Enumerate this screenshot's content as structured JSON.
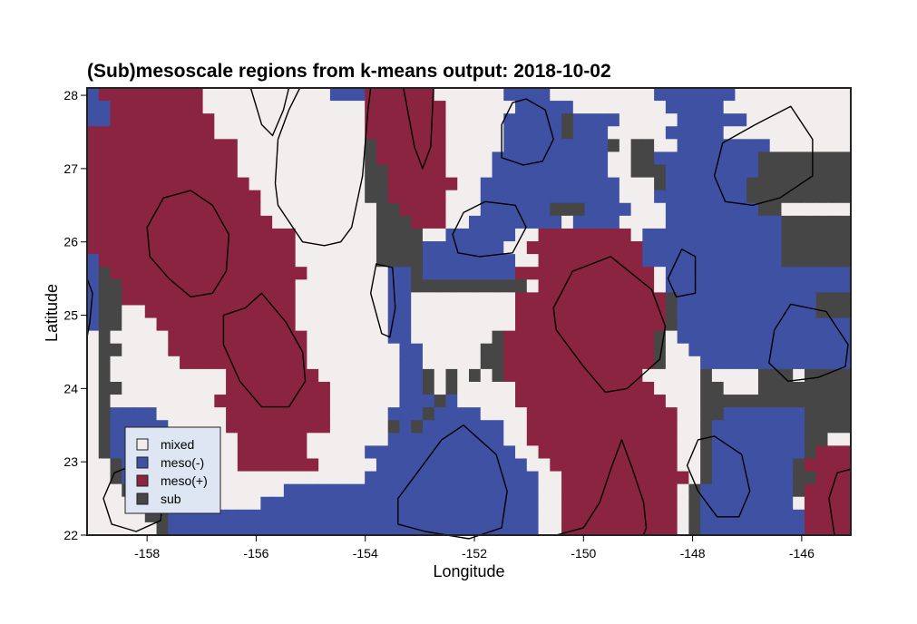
{
  "chart_data": {
    "type": "heatmap",
    "title": "(Sub)mesoscale regions from k-means output: 2018-10-02",
    "xlabel": "Longitude",
    "ylabel": "Latitude",
    "xlim": [
      -159.1,
      -145.1
    ],
    "ylim": [
      22.0,
      28.1
    ],
    "xticks": [
      -158,
      -156,
      -154,
      -152,
      -150,
      -148,
      -146
    ],
    "xtick_labels": [
      "-158",
      "-156",
      "-154",
      "-152",
      "-150",
      "-148",
      "-146"
    ],
    "yticks": [
      22,
      23,
      24,
      25,
      26,
      27,
      28
    ],
    "ytick_labels": [
      "22",
      "23",
      "24",
      "25",
      "26",
      "27",
      "28"
    ],
    "grid": false,
    "legend_position": "lower-left",
    "legend": [
      {
        "key": "mixed",
        "label": "mixed",
        "color": "#f2eeee"
      },
      {
        "key": "meso_neg",
        "label": "meso(-)",
        "color": "#3f51a3"
      },
      {
        "key": "meso_pos",
        "label": "meso(+)",
        "color": "#8b2440"
      },
      {
        "key": "sub",
        "label": "sub",
        "color": "#464646"
      }
    ],
    "grid_resolution_deg": 0.25,
    "cell_codes": {
      "m": "mixed",
      "n": "meso(-)",
      "p": "meso(+)",
      "s": "sub"
    },
    "rows_top_to_bottom": [
      "npppppppppmmmmmmmmmmmnnnppppppmmmmmmnnnnmmmmmmmmmnnnnnnnmmm",
      "nnppppppppmmmmmmmmmmmmmmpppppppmmmmmmnnnnnmmmmmmmmnnnnnmmmm",
      "nnpppppppppmmmmmmmmmmmmmpppppppmmmmmnnnnnsnnnnmmmmmnnnnnnmmm",
      "pppppppppppmmmmmmmmmmmmmpppppppmmmmmnnnnnsnnnmmmmmnnnnnmmmmm",
      "pppppppppppppmmmmmmmmmmmsppppppmmmmmnnnnnnnnnsmssmmnnnnnnnnmm",
      "pppppppppppppmmmmmmmmmmmsppppppmmmmnnnnnnnnnnmmssnnnnnnnnnsss",
      "pppppppppppppmmmmmmmmmmmsspppppmmmmnnnnnnnnnnmmsssnnnnnnnnssss",
      "ppppppppppppppmmmmmmmmmmssppppppmmnnnnnnnnnnnnmmmsnnnnnnnsssss",
      "pppppppppppppppmmmmmmmmmsspppppmmmnnnnnnnnnnnnmmmnnnnnnnnsssss",
      "pppppppppppppppmmmmmmmmmmssppppmmmnnnnnnsssnnnnmmmnnnnnnnnssmm",
      "ppppppppppppppppmmmmmmmmmssspppmmnnnnnnnnmnnnnmmmmnnnnnnnnnnss",
      "ppppppppppppppppppmmmmmmmssssmmnnnnnnmmppppppppmnnnnnnnnnnnnss",
      "ppppppppppppppppppmmmmmmmssssnnnnnnnmmppppppppppnnnnnnnnnnnnss",
      "npppppppppppppppppmmmmmmmssssnnnnnnnnmmpppppppppnnnnnnnnnnnnss",
      "nspppppppppppppppppmmmmmmmnnsnnnnnnnnppppppppppppmnnnnnnnnnnnnn",
      "nsspppppppppppppppmmmmmmmmnnssssssssssmppppppppppmnnnnnnnnnnnnn",
      "nsspppppppppppppppmmmmmmmmnnmmmmmmmmmpppppppppppppsnnnnnnnnnnnns",
      "nssmmpppppppppppppmmmmmmmmnnmmmmmmmmmpppppppppppppsnnnnnnnnnnnns",
      "nssmmmppppppppppppmmmmmmmmnnmmmmmmmmmpppppppppppppsnnnnnnnnnnnnn",
      "msmmmmmppppppppppppmmmmmmmnnmmmmmmmspppppppppppppsmnnnnnnnnnnnnn",
      "mssmmmmppppppppppppmmmmmmmmnnmmmmmsspppppppppppppsmmnnnnnnnnnnnn",
      "msmmmmmmpppppppppppmmmmmmmmnnmmmmmsspppppppppppppsmmmnnnnnnnnnnn",
      "msmmmmmmmmmmppppppppmmmmmmmnnsmsmsmsppppppppppppmmmmmsmmmmsssmss",
      "mssmmmmmmmmmpppppppppmmmmmmnnsmsmmmmmppppppppppppmmmmssmmmssssss",
      "msmmmmmmmmmppppppppppmmmmmmnnnsnmmmmmpppppppppppppmmmsssssssssss",
      "msnnnnmmmmmmpppppppppmmmmmnnnsnnnnmmmmpppppppppppppmmssnnnnnnnsss",
      "msnnnnnmmmmmpppppppppmmmmmsnsnnnnnnnmmpppppppppppppmmsnnnnnnnnsss",
      "msnnnnnnmmmmmppppppmmmmmmmnnnnnnnnnnmmpppppppppppppmmsnnnnnnnnssm",
      "msnnnnnnmmmmmppppppmmmmmnnnnnnnnnnnnnmmppppppppppppmmsnnnnnnnnspp",
      "mmsnnnnnmmmmmpppppppmmmmmnnnnnnnnnnnnnmmpppppppppppmmsnnnnnnnsppp",
      "mmsnnnnmmmmmmmmmmmmmmmmmnnnnnnnnnnnnnnnmmpppppppppppmsnnnnnnnssppp",
      "mmmsnnnmmmmmmmmmmnnnnnnnnnnnnnnnnnnnnnnmmppppppppppmsnnnnnnnnsppp",
      "mmmmssnnnmmmmmmnnnnnnnnnnnnnnnnnnnnnnnnmmppppppppppmsnnnnnnnnmppp",
      "mmmmmssnnnnnnnnnnnnnnnnnnnnnnnnnnnnnnnnmmppppppppppmsnnnnnnnnnppp",
      "mmmmmmsnnnnnnnnnnnnnnnnnnnnnnnnnnnnnnnnmmppppppppppmsnnnnnnnnnppp"
    ],
    "contours": [
      {
        "name": "contour-1",
        "closed": true,
        "points": [
          [
            -157.7,
            26.6
          ],
          [
            -157.2,
            26.7
          ],
          [
            -156.8,
            26.5
          ],
          [
            -156.5,
            26.1
          ],
          [
            -156.55,
            25.6
          ],
          [
            -156.8,
            25.3
          ],
          [
            -157.2,
            25.25
          ],
          [
            -157.6,
            25.5
          ],
          [
            -157.95,
            25.8
          ],
          [
            -158.0,
            26.2
          ]
        ]
      },
      {
        "name": "contour-2",
        "closed": true,
        "points": [
          [
            -155.9,
            25.3
          ],
          [
            -155.45,
            24.9
          ],
          [
            -155.15,
            24.5
          ],
          [
            -155.1,
            24.1
          ],
          [
            -155.4,
            23.75
          ],
          [
            -155.9,
            23.75
          ],
          [
            -156.3,
            24.1
          ],
          [
            -156.6,
            24.6
          ],
          [
            -156.6,
            25.0
          ],
          [
            -156.2,
            25.1
          ]
        ]
      },
      {
        "name": "contour-3",
        "closed": false,
        "points": [
          [
            -156.1,
            28.1
          ],
          [
            -155.9,
            27.6
          ],
          [
            -155.7,
            27.45
          ],
          [
            -155.5,
            27.8
          ],
          [
            -155.4,
            28.1
          ]
        ]
      },
      {
        "name": "contour-4",
        "closed": false,
        "points": [
          [
            -155.2,
            28.1
          ],
          [
            -155.4,
            27.8
          ],
          [
            -155.6,
            27.4
          ],
          [
            -155.65,
            26.8
          ],
          [
            -155.6,
            26.5
          ],
          [
            -155.15,
            26.0
          ],
          [
            -154.75,
            25.95
          ],
          [
            -154.45,
            26.0
          ],
          [
            -154.25,
            26.2
          ],
          [
            -154.05,
            26.9
          ],
          [
            -153.95,
            27.8
          ],
          [
            -153.9,
            28.1
          ]
        ]
      },
      {
        "name": "contour-5",
        "closed": true,
        "points": [
          [
            -153.8,
            25.7
          ],
          [
            -153.5,
            25.65
          ],
          [
            -153.45,
            25.1
          ],
          [
            -153.55,
            24.7
          ],
          [
            -153.7,
            24.75
          ],
          [
            -153.9,
            25.3
          ]
        ]
      },
      {
        "name": "contour-6",
        "closed": false,
        "points": [
          [
            -153.3,
            28.1
          ],
          [
            -153.1,
            27.3
          ],
          [
            -152.95,
            27.0
          ],
          [
            -152.8,
            27.3
          ],
          [
            -152.75,
            28.1
          ]
        ]
      },
      {
        "name": "contour-7",
        "closed": true,
        "points": [
          [
            -151.8,
            26.55
          ],
          [
            -151.25,
            26.5
          ],
          [
            -151.05,
            26.2
          ],
          [
            -151.3,
            25.85
          ],
          [
            -151.9,
            25.8
          ],
          [
            -152.3,
            25.85
          ],
          [
            -152.4,
            26.1
          ],
          [
            -152.2,
            26.4
          ]
        ]
      },
      {
        "name": "contour-8",
        "closed": true,
        "points": [
          [
            -151.05,
            27.95
          ],
          [
            -150.7,
            27.8
          ],
          [
            -150.55,
            27.4
          ],
          [
            -150.75,
            27.1
          ],
          [
            -151.1,
            27.05
          ],
          [
            -151.5,
            27.15
          ],
          [
            -151.5,
            27.6
          ],
          [
            -151.3,
            27.9
          ]
        ]
      },
      {
        "name": "contour-9",
        "closed": true,
        "points": [
          [
            -150.2,
            25.6
          ],
          [
            -149.5,
            25.8
          ],
          [
            -148.75,
            25.35
          ],
          [
            -148.5,
            24.85
          ],
          [
            -148.6,
            24.4
          ],
          [
            -149.2,
            24.0
          ],
          [
            -149.6,
            23.95
          ],
          [
            -150.0,
            24.3
          ],
          [
            -150.5,
            24.8
          ],
          [
            -150.55,
            25.1
          ]
        ]
      },
      {
        "name": "contour-10",
        "closed": true,
        "points": [
          [
            -148.2,
            25.9
          ],
          [
            -147.95,
            25.8
          ],
          [
            -147.95,
            25.3
          ],
          [
            -148.3,
            25.25
          ],
          [
            -148.45,
            25.5
          ]
        ]
      },
      {
        "name": "contour-11",
        "closed": true,
        "points": [
          [
            -146.85,
            27.6
          ],
          [
            -146.2,
            27.85
          ],
          [
            -145.8,
            27.4
          ],
          [
            -145.8,
            26.9
          ],
          [
            -146.4,
            26.6
          ],
          [
            -146.9,
            26.5
          ],
          [
            -147.4,
            26.55
          ],
          [
            -147.6,
            26.9
          ],
          [
            -147.45,
            27.35
          ]
        ]
      },
      {
        "name": "contour-12",
        "closed": true,
        "points": [
          [
            -146.2,
            25.15
          ],
          [
            -145.55,
            25.05
          ],
          [
            -145.15,
            24.6
          ],
          [
            -145.2,
            24.3
          ],
          [
            -145.7,
            24.15
          ],
          [
            -146.25,
            24.1
          ],
          [
            -146.6,
            24.35
          ],
          [
            -146.5,
            24.8
          ]
        ]
      },
      {
        "name": "contour-13",
        "closed": true,
        "points": [
          [
            -147.6,
            23.35
          ],
          [
            -147.1,
            23.1
          ],
          [
            -146.95,
            22.6
          ],
          [
            -147.15,
            22.25
          ],
          [
            -147.55,
            22.25
          ],
          [
            -147.9,
            22.6
          ],
          [
            -148.1,
            22.95
          ],
          [
            -147.9,
            23.3
          ]
        ]
      },
      {
        "name": "contour-14",
        "closed": false,
        "points": [
          [
            -145.1,
            22.9
          ],
          [
            -145.35,
            22.85
          ],
          [
            -145.5,
            22.5
          ],
          [
            -145.4,
            22.0
          ]
        ]
      },
      {
        "name": "contour-15",
        "closed": true,
        "points": [
          [
            -152.2,
            23.5
          ],
          [
            -151.6,
            23.1
          ],
          [
            -151.4,
            22.6
          ],
          [
            -151.5,
            22.1
          ],
          [
            -152.1,
            21.95
          ],
          [
            -152.9,
            22.05
          ],
          [
            -153.4,
            22.15
          ],
          [
            -153.4,
            22.5
          ],
          [
            -153.0,
            22.9
          ],
          [
            -152.6,
            23.3
          ]
        ]
      },
      {
        "name": "contour-16",
        "closed": false,
        "points": [
          [
            -150.5,
            22.0
          ],
          [
            -150.0,
            22.1
          ],
          [
            -149.7,
            22.45
          ],
          [
            -149.5,
            22.9
          ],
          [
            -149.3,
            23.3
          ],
          [
            -149.1,
            22.9
          ],
          [
            -148.9,
            22.45
          ],
          [
            -148.85,
            22.1
          ],
          [
            -148.9,
            22.0
          ]
        ]
      },
      {
        "name": "contour-17",
        "closed": true,
        "points": [
          [
            -158.1,
            23.0
          ],
          [
            -157.7,
            22.65
          ],
          [
            -157.75,
            22.2
          ],
          [
            -158.2,
            22.05
          ],
          [
            -158.65,
            22.15
          ],
          [
            -158.8,
            22.5
          ],
          [
            -158.6,
            22.85
          ]
        ]
      },
      {
        "name": "contour-18",
        "closed": false,
        "points": [
          [
            -159.1,
            25.5
          ],
          [
            -159.0,
            25.3
          ],
          [
            -159.05,
            24.9
          ],
          [
            -159.1,
            24.7
          ]
        ]
      }
    ]
  }
}
